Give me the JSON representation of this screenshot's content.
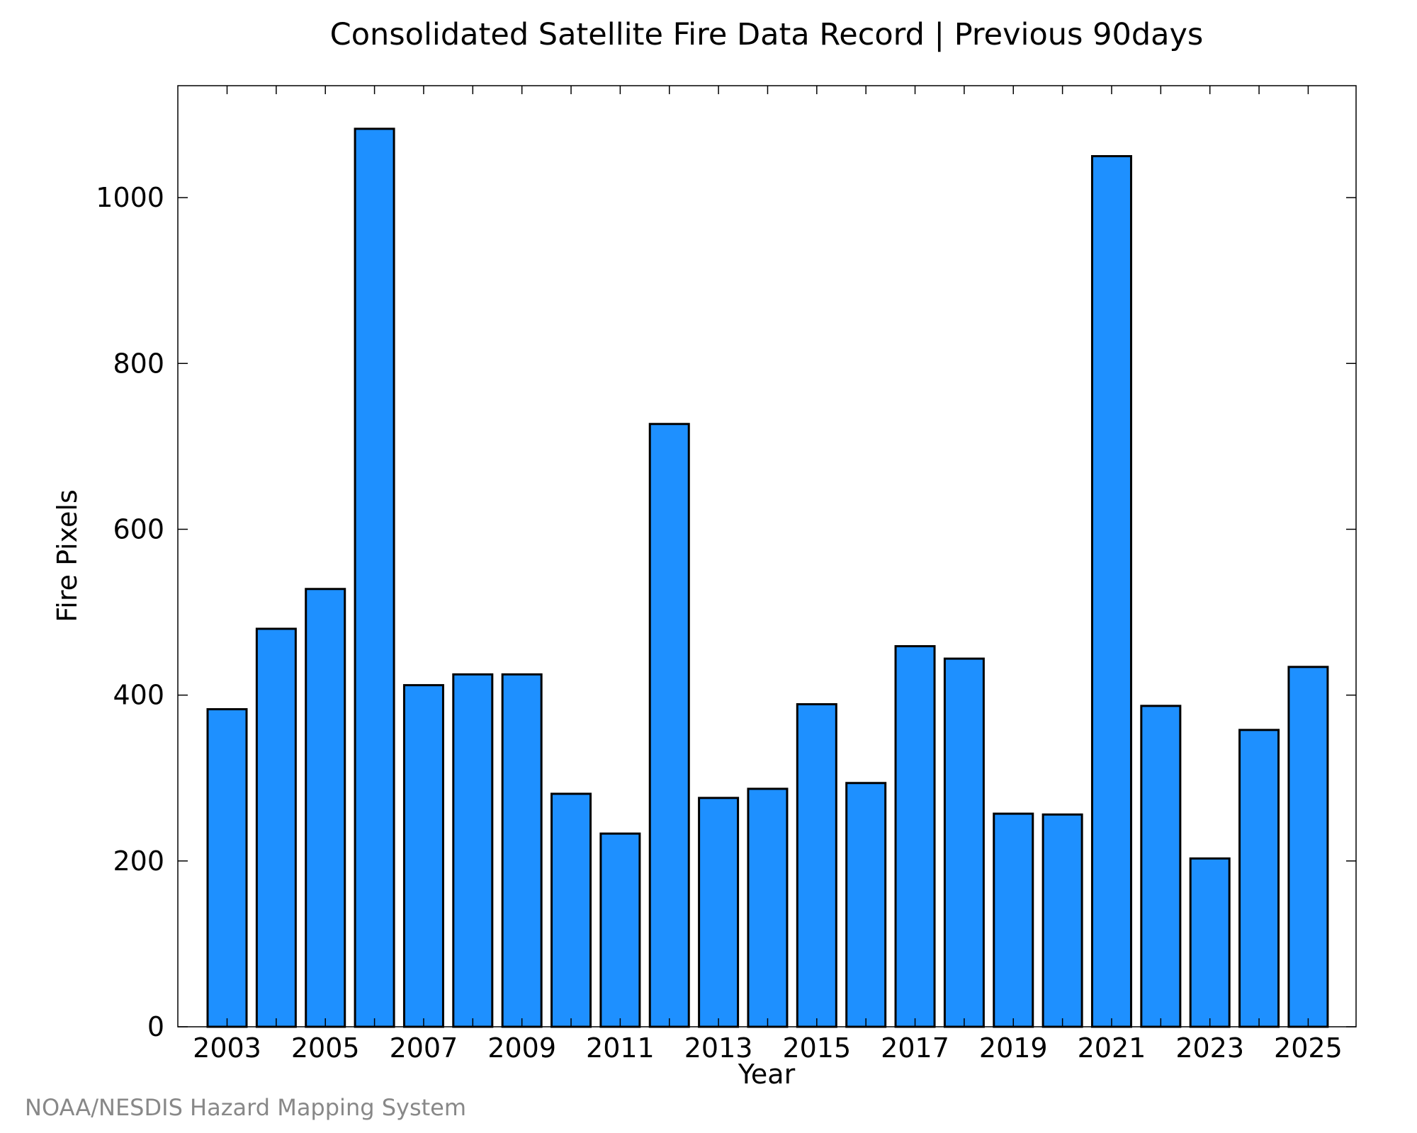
{
  "chart_data": {
    "type": "bar",
    "title": "Consolidated Satellite Fire Data Record | Previous 90days",
    "xlabel": "Year",
    "ylabel": "Fire Pixels",
    "categories": [
      "2003",
      "2004",
      "2005",
      "2006",
      "2007",
      "2008",
      "2009",
      "2010",
      "2011",
      "2012",
      "2013",
      "2014",
      "2015",
      "2016",
      "2017",
      "2018",
      "2019",
      "2020",
      "2021",
      "2022",
      "2023",
      "2024",
      "2025"
    ],
    "values": [
      383,
      480,
      528,
      1083,
      412,
      425,
      425,
      281,
      233,
      727,
      276,
      287,
      389,
      294,
      459,
      444,
      257,
      256,
      1050,
      387,
      203,
      358,
      434
    ],
    "x_tick_labels": [
      "2003",
      "2005",
      "2007",
      "2009",
      "2011",
      "2013",
      "2015",
      "2017",
      "2019",
      "2021",
      "2023",
      "2025"
    ],
    "y_ticks": [
      "0",
      "200",
      "400",
      "600",
      "800",
      "1000"
    ],
    "ylim": [
      0,
      1135
    ],
    "bar_color": "#1e90ff",
    "bar_edge_color": "#000000",
    "grid": false
  },
  "footer": {
    "credit": "NOAA/NESDIS Hazard Mapping System"
  }
}
